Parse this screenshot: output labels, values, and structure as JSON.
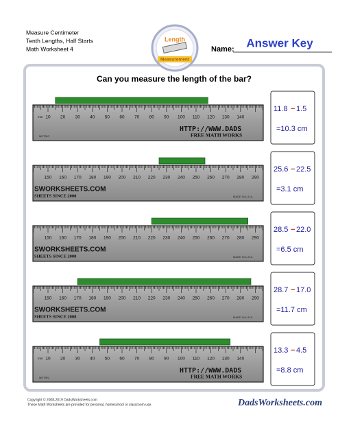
{
  "header": {
    "lines": [
      "Measure Centimeter",
      "Tenth Lengths, Half Starts",
      "Math Worksheet 4"
    ],
    "logo": [
      "Length",
      "Measurement"
    ],
    "name_label": "Name:",
    "answer_key": "Answer Key"
  },
  "question": "Can you measure the length of the bar?",
  "problems": [
    {
      "ruler": {
        "unit": "mm",
        "labels": [
          "10",
          "20",
          "30",
          "40",
          "50",
          "60",
          "70",
          "80",
          "90",
          "100",
          "110",
          "120",
          "130",
          "140"
        ],
        "brand": [
          "HTTP://WWW.DADS",
          "FREE MATH WORKS"
        ],
        "small": "METRIC"
      },
      "answer": {
        "end": "11.8",
        "operator": "−",
        "start": "1.5",
        "result": "=10.3 cm"
      }
    },
    {
      "ruler": {
        "labels": [
          "150",
          "160",
          "170",
          "180",
          "190",
          "200",
          "210",
          "220",
          "230",
          "240",
          "250",
          "260",
          "270",
          "280",
          "290"
        ],
        "brand": [
          "SWORKSHEETS.COM",
          "SHEETS SINCE 2008"
        ],
        "small": "MADE IN U.S.A."
      },
      "answer": {
        "end": "25.6",
        "operator": "−",
        "start": "22.5",
        "result": "=3.1 cm"
      }
    },
    {
      "ruler": {
        "labels": [
          "150",
          "160",
          "170",
          "180",
          "190",
          "200",
          "210",
          "220",
          "230",
          "240",
          "250",
          "260",
          "270",
          "280",
          "290"
        ],
        "brand": [
          "SWORKSHEETS.COM",
          "SHEETS SINCE 2008"
        ],
        "small": "MADE IN U.S.A."
      },
      "answer": {
        "end": "28.5",
        "operator": "−",
        "start": "22.0",
        "result": "=6.5 cm"
      }
    },
    {
      "ruler": {
        "labels": [
          "150",
          "160",
          "170",
          "180",
          "190",
          "200",
          "210",
          "220",
          "230",
          "240",
          "250",
          "260",
          "270",
          "280",
          "290"
        ],
        "brand": [
          "SWORKSHEETS.COM",
          "SHEETS SINCE 2008"
        ],
        "small": "MADE IN U.S.A."
      },
      "answer": {
        "end": "28.7",
        "operator": "−",
        "start": "17.0",
        "result": "=11.7 cm"
      }
    },
    {
      "ruler": {
        "unit": "mm",
        "labels": [
          "10",
          "20",
          "30",
          "40",
          "50",
          "60",
          "70",
          "80",
          "90",
          "100",
          "110",
          "120",
          "130",
          "140"
        ],
        "brand": [
          "HTTP://WWW.DADS",
          "FREE MATH WORKS"
        ],
        "small": "METRIC"
      },
      "answer": {
        "end": "13.3",
        "operator": "−",
        "start": "4.5",
        "result": "=8.8 cm"
      }
    }
  ],
  "footer": {
    "copyright": "Copyright © 2008-2019 DadsWorksheets.com",
    "note": "These Math Worksheets are provided for personal, homeschool or classroom use.",
    "brand": "DadsWorksheets.com"
  }
}
